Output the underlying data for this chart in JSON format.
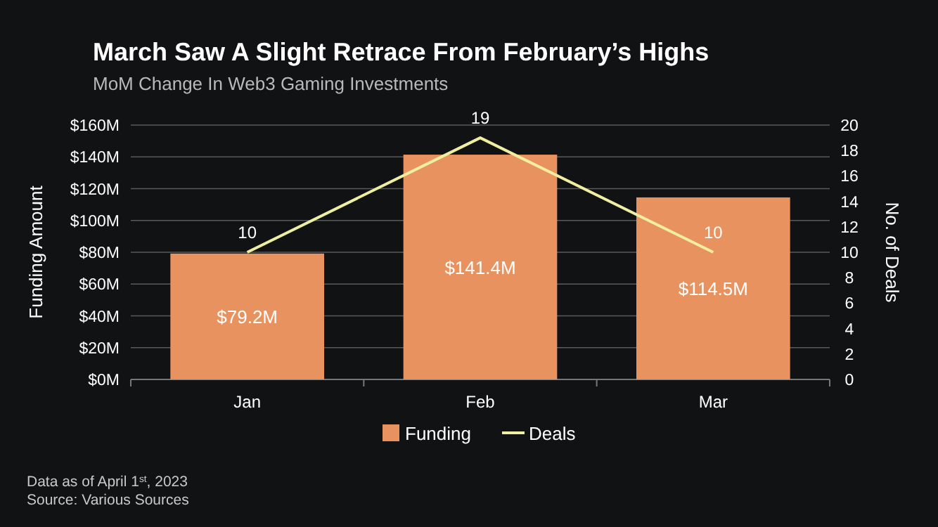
{
  "chart_data": {
    "type": "bar",
    "title": "March Saw A Slight Retrace From February’s Highs",
    "subtitle": "MoM Change In Web3 Gaming Investments",
    "ylabel": "Funding Amount",
    "y2label": "No. of Deals",
    "categories": [
      "Jan",
      "Feb",
      "Mar"
    ],
    "series": [
      {
        "name": "Funding",
        "color": "#e8935f",
        "values": [
          79.2,
          141.4,
          114.5
        ],
        "value_labels": [
          "$79.2M",
          "$141.4M",
          "$114.5M"
        ]
      },
      {
        "name": "Deals",
        "type": "line",
        "axis": "y2",
        "color": "#f0eea0",
        "values": [
          10,
          19,
          10
        ],
        "value_labels": [
          "10",
          "19",
          "10"
        ]
      }
    ],
    "ylim": [
      0,
      160
    ],
    "yticks": [
      {
        "value": 0,
        "label": "$0M"
      },
      {
        "value": 20,
        "label": "$20M"
      },
      {
        "value": 40,
        "label": "$40M"
      },
      {
        "value": 60,
        "label": "$60M"
      },
      {
        "value": 80,
        "label": "$80M"
      },
      {
        "value": 100,
        "label": "$100M"
      },
      {
        "value": 120,
        "label": "$120M"
      },
      {
        "value": 140,
        "label": "$140M"
      },
      {
        "value": 160,
        "label": "$160M"
      }
    ],
    "y2lim": [
      0,
      20
    ],
    "y2ticks": [
      0,
      2,
      4,
      6,
      8,
      10,
      12,
      14,
      16,
      18,
      20
    ],
    "grid": "y",
    "legend": "bottom",
    "marker": "none",
    "line_style": "solid",
    "annotations": [
      "Data as of April 1$^{st}$, 2023",
      "Source: Various Sources"
    ]
  }
}
